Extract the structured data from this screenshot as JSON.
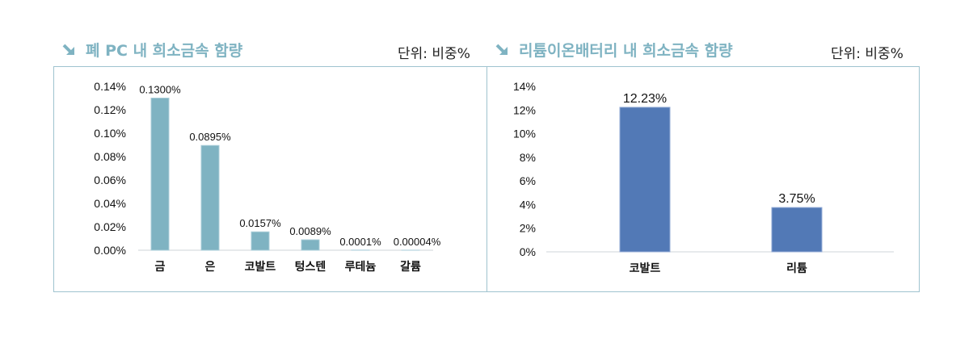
{
  "left_panel": {
    "title": "폐 PC 내 희소금속 함량",
    "unit": "단위: 비중%"
  },
  "right_panel": {
    "title": "리튬이온배터리 내 희소금속 함량",
    "unit": "단위: 비중%"
  },
  "colors": {
    "title": "#7fb3c2",
    "frame": "#9fc3cf",
    "bar_left": "#7fb3c2",
    "bar_right": "#5279b6"
  },
  "chart_data": [
    {
      "type": "bar",
      "categories": [
        "금",
        "은",
        "코발트",
        "텅스텐",
        "루테늄",
        "갈륨"
      ],
      "values": [
        0.13,
        0.0895,
        0.0157,
        0.0089,
        0.0001,
        4e-05
      ],
      "data_labels": [
        "0.1300%",
        "0.0895%",
        "0.0157%",
        "0.0089%",
        "0.0001%",
        "0.00004%"
      ],
      "y_ticks": [
        "0.00%",
        "0.02%",
        "0.04%",
        "0.06%",
        "0.08%",
        "0.10%",
        "0.12%",
        "0.14%"
      ],
      "ylim": [
        0,
        0.14
      ],
      "grid": false,
      "legend": "none"
    },
    {
      "type": "bar",
      "categories": [
        "코발트",
        "리튬"
      ],
      "values": [
        12.23,
        3.75
      ],
      "data_labels": [
        "12.23%",
        "3.75%"
      ],
      "y_ticks": [
        "0%",
        "2%",
        "4%",
        "6%",
        "8%",
        "10%",
        "12%",
        "14%"
      ],
      "ylim": [
        0,
        14
      ],
      "grid": false,
      "legend": "none"
    }
  ]
}
